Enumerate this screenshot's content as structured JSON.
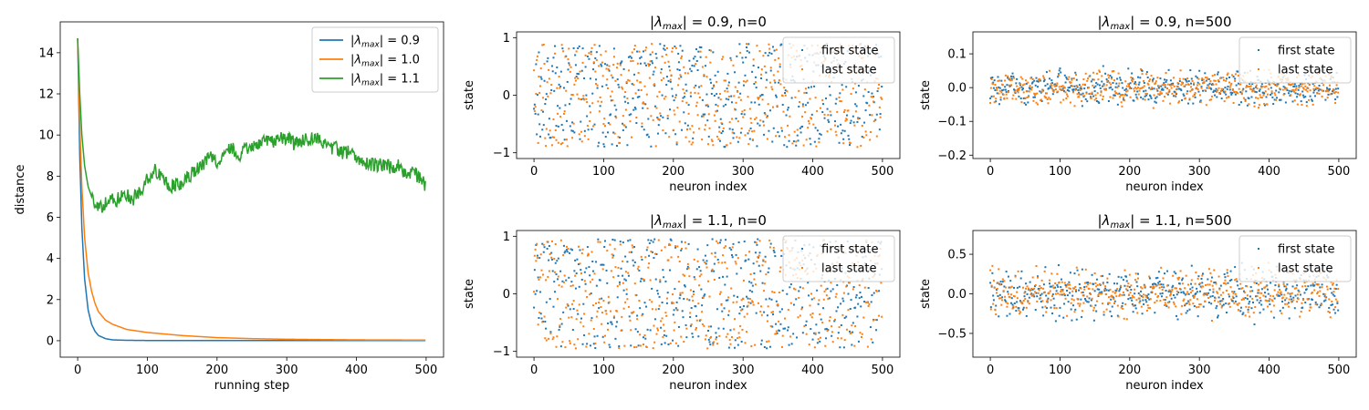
{
  "chart_data": [
    {
      "type": "line",
      "xlabel": "running step",
      "ylabel": "distance",
      "xlim": [
        -25,
        525
      ],
      "ylim": [
        -0.8,
        15.5
      ],
      "xticks": [
        0,
        100,
        200,
        300,
        400,
        500
      ],
      "yticks": [
        0,
        2,
        4,
        6,
        8,
        10,
        12,
        14
      ],
      "legend": "top-right",
      "series": [
        {
          "name": "|λmax| = 0.9",
          "color": "#1f77b4",
          "kind": "decay",
          "x": [
            0,
            3,
            6,
            10,
            15,
            20,
            25,
            30,
            40,
            50,
            70,
            100,
            150,
            200,
            300,
            400,
            499
          ],
          "y": [
            14.7,
            9.0,
            5.5,
            3.0,
            1.5,
            0.8,
            0.45,
            0.25,
            0.1,
            0.04,
            0.02,
            0.01,
            0.01,
            0.01,
            0.01,
            0.01,
            0.01
          ]
        },
        {
          "name": "|λmax| = 1.0",
          "color": "#ff7f0e",
          "kind": "decay",
          "x": [
            0,
            3,
            6,
            10,
            15,
            20,
            25,
            30,
            40,
            50,
            70,
            100,
            150,
            200,
            250,
            300,
            400,
            499
          ],
          "y": [
            14.7,
            10.5,
            7.5,
            5.0,
            3.3,
            2.4,
            1.8,
            1.4,
            1.0,
            0.8,
            0.55,
            0.4,
            0.25,
            0.15,
            0.1,
            0.07,
            0.04,
            0.03
          ]
        },
        {
          "name": "|λmax| = 1.1",
          "color": "#2ca02c",
          "kind": "noisy",
          "noise": 0.35,
          "x": [
            0,
            3,
            6,
            10,
            15,
            20,
            25,
            30,
            40,
            50,
            60,
            70,
            80,
            90,
            100,
            110,
            120,
            130,
            140,
            150,
            160,
            170,
            180,
            190,
            200,
            210,
            220,
            230,
            240,
            250,
            260,
            270,
            280,
            290,
            300,
            310,
            320,
            330,
            340,
            350,
            360,
            370,
            380,
            390,
            400,
            410,
            420,
            430,
            440,
            450,
            460,
            470,
            480,
            490,
            499
          ],
          "y": [
            14.7,
            12.0,
            10.0,
            8.5,
            7.5,
            7.0,
            6.6,
            6.4,
            6.7,
            6.8,
            6.9,
            7.1,
            6.9,
            7.3,
            7.9,
            8.3,
            8.1,
            7.6,
            7.5,
            7.7,
            8.0,
            8.3,
            8.6,
            8.9,
            8.7,
            9.2,
            9.4,
            9.0,
            9.3,
            9.5,
            9.6,
            9.7,
            9.6,
            9.8,
            9.9,
            9.6,
            9.7,
            9.8,
            9.8,
            9.7,
            9.3,
            9.4,
            9.1,
            9.2,
            8.9,
            8.7,
            8.6,
            8.5,
            8.6,
            8.4,
            8.5,
            8.1,
            8.2,
            7.9,
            7.6
          ]
        }
      ]
    },
    {
      "type": "scatter",
      "title": "|λmax| = 0.9, n=0",
      "xlabel": "neuron index",
      "ylabel": "state",
      "xlim": [
        -25,
        525
      ],
      "ylim": [
        -1.1,
        1.1
      ],
      "xticks": [
        0,
        100,
        200,
        300,
        400,
        500
      ],
      "yticks": [
        -1,
        0,
        1
      ],
      "legend": "top-right",
      "n_points": 500,
      "series": [
        {
          "name": "first state",
          "color": "#1f77b4",
          "amplitude": 0.9,
          "seed": 11
        },
        {
          "name": "last state",
          "color": "#ff7f0e",
          "amplitude": 0.9,
          "seed": 23
        }
      ]
    },
    {
      "type": "scatter",
      "title": "|λmax| = 0.9, n=500",
      "xlabel": "neuron index",
      "ylabel": "state",
      "xlim": [
        -25,
        525
      ],
      "ylim": [
        -0.21,
        0.165
      ],
      "xticks": [
        0,
        100,
        200,
        300,
        400,
        500
      ],
      "yticks": [
        -0.2,
        -0.1,
        0.0,
        0.1
      ],
      "legend": "top-right",
      "n_points": 500,
      "series": [
        {
          "name": "first state",
          "color": "#1f77b4",
          "amplitude": 0.06,
          "seed": 37
        },
        {
          "name": "last state",
          "color": "#ff7f0e",
          "amplitude": 0.06,
          "seed": 37
        }
      ]
    },
    {
      "type": "scatter",
      "title": "|λmax| = 1.1, n=0",
      "xlabel": "neuron index",
      "ylabel": "state",
      "xlim": [
        -25,
        525
      ],
      "ylim": [
        -1.1,
        1.1
      ],
      "xticks": [
        0,
        100,
        200,
        300,
        400,
        500
      ],
      "yticks": [
        -1,
        0,
        1
      ],
      "legend": "top-right",
      "n_points": 500,
      "series": [
        {
          "name": "first state",
          "color": "#1f77b4",
          "amplitude": 0.95,
          "seed": 53
        },
        {
          "name": "last state",
          "color": "#ff7f0e",
          "amplitude": 0.95,
          "seed": 71
        }
      ]
    },
    {
      "type": "scatter",
      "title": "|λmax| = 1.1, n=500",
      "xlabel": "neuron index",
      "ylabel": "state",
      "xlim": [
        -25,
        525
      ],
      "ylim": [
        -0.8,
        0.8
      ],
      "xticks": [
        0,
        100,
        200,
        300,
        400,
        500
      ],
      "yticks": [
        -0.5,
        0.0,
        0.5
      ],
      "legend": "top-right",
      "n_points": 500,
      "series": [
        {
          "name": "first state",
          "color": "#1f77b4",
          "amplitude": 0.35,
          "seed": 89
        },
        {
          "name": "last state",
          "color": "#ff7f0e",
          "amplitude": 0.35,
          "seed": 97
        }
      ]
    }
  ]
}
